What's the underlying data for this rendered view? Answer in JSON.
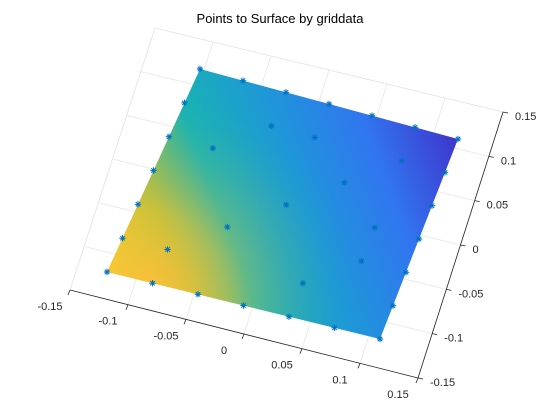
{
  "chart_data": {
    "type": "surface",
    "title": "Points to Surface by griddata",
    "xlim": [
      -0.15,
      0.15
    ],
    "ylim": [
      -0.15,
      0.15
    ],
    "x_ticks": [
      "-0.15",
      "-0.1",
      "-0.05",
      "0",
      "0.05",
      "0.1",
      "0.15"
    ],
    "y_ticks": [
      "-0.15",
      "-0.1",
      "-0.05",
      "0",
      "0.05",
      "0.1",
      "0.15"
    ],
    "grid": true,
    "colormap": "parula",
    "marker": "*",
    "marker_color": "#0072bd",
    "sample_points": [
      {
        "x": -0.15,
        "y": -0.15,
        "z": 0.0
      },
      {
        "x": -0.15,
        "y": -0.1,
        "z": 0.04
      },
      {
        "x": -0.15,
        "y": -0.05,
        "z": 0.09
      },
      {
        "x": -0.15,
        "y": 0.0,
        "z": 0.14
      },
      {
        "x": -0.15,
        "y": 0.05,
        "z": 0.19
      },
      {
        "x": -0.15,
        "y": 0.1,
        "z": 0.24
      },
      {
        "x": -0.15,
        "y": 0.15,
        "z": 0.29
      },
      {
        "x": -0.1,
        "y": -0.15,
        "z": 0.04
      },
      {
        "x": -0.05,
        "y": -0.15,
        "z": 0.09
      },
      {
        "x": 0.0,
        "y": -0.15,
        "z": 0.14
      },
      {
        "x": 0.05,
        "y": -0.15,
        "z": 0.19
      },
      {
        "x": 0.1,
        "y": -0.15,
        "z": 0.24
      },
      {
        "x": 0.15,
        "y": -0.15,
        "z": 0.29
      },
      {
        "x": 0.15,
        "y": -0.1,
        "z": 0.31
      },
      {
        "x": 0.15,
        "y": -0.05,
        "z": 0.33
      },
      {
        "x": 0.15,
        "y": 0.0,
        "z": 0.36
      },
      {
        "x": 0.15,
        "y": 0.05,
        "z": 0.39
      },
      {
        "x": 0.15,
        "y": 0.1,
        "z": 0.42
      },
      {
        "x": 0.15,
        "y": 0.15,
        "z": 0.46
      },
      {
        "x": -0.1,
        "y": 0.15,
        "z": 0.31
      },
      {
        "x": -0.05,
        "y": 0.15,
        "z": 0.33
      },
      {
        "x": 0.0,
        "y": 0.15,
        "z": 0.36
      },
      {
        "x": 0.05,
        "y": 0.15,
        "z": 0.39
      },
      {
        "x": 0.1,
        "y": 0.15,
        "z": 0.42
      },
      {
        "x": -0.1,
        "y": -0.1,
        "z": 0.08
      },
      {
        "x": -0.05,
        "y": -0.05,
        "z": 0.17
      },
      {
        "x": 0.0,
        "y": 0.0,
        "z": 0.26
      },
      {
        "x": 0.05,
        "y": 0.05,
        "z": 0.34
      },
      {
        "x": 0.1,
        "y": 0.1,
        "z": 0.4
      },
      {
        "x": -0.1,
        "y": 0.05,
        "z": 0.24
      },
      {
        "x": -0.05,
        "y": 0.1,
        "z": 0.28
      },
      {
        "x": 0.05,
        "y": -0.1,
        "z": 0.24
      },
      {
        "x": 0.1,
        "y": -0.05,
        "z": 0.29
      },
      {
        "x": 0.0,
        "y": 0.1,
        "z": 0.32
      },
      {
        "x": 0.1,
        "y": 0.0,
        "z": 0.33
      }
    ]
  }
}
